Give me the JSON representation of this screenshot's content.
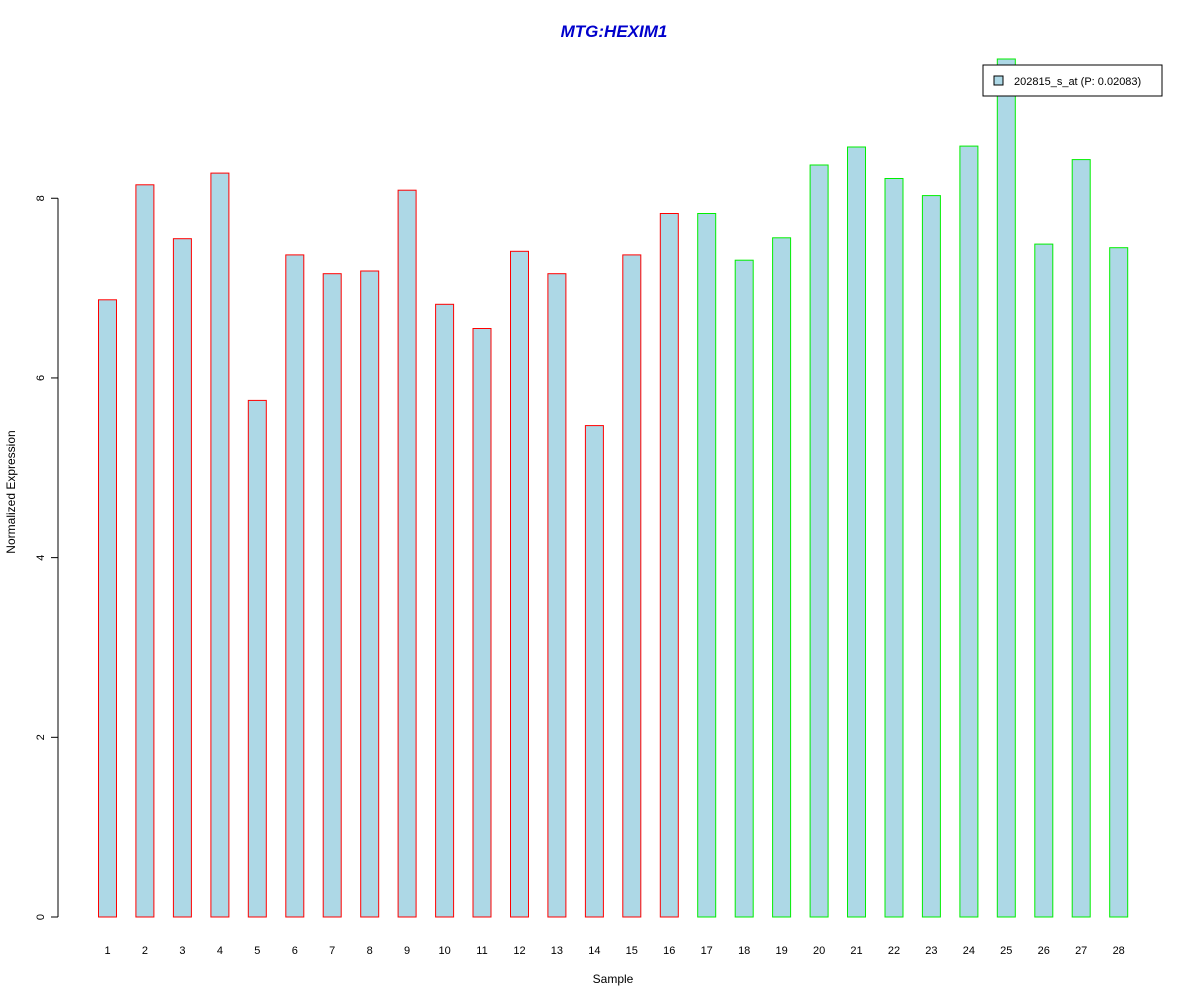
{
  "chart_data": {
    "type": "bar",
    "title": "MTG:HEXIM1",
    "xlabel": "Sample",
    "ylabel": "Normalized Expression",
    "categories": [
      "1",
      "2",
      "3",
      "4",
      "5",
      "6",
      "7",
      "8",
      "9",
      "10",
      "11",
      "12",
      "13",
      "14",
      "15",
      "16",
      "17",
      "18",
      "19",
      "20",
      "21",
      "22",
      "23",
      "24",
      "25",
      "26",
      "27",
      "28"
    ],
    "series": [
      {
        "name": "202815_s_at (P: 0.02083)",
        "values": [
          6.87,
          8.15,
          7.55,
          8.28,
          5.75,
          7.37,
          7.16,
          7.19,
          8.09,
          6.82,
          6.55,
          7.41,
          7.16,
          5.47,
          7.37,
          7.83,
          7.83,
          7.31,
          7.56,
          8.37,
          8.57,
          8.22,
          8.03,
          8.58,
          9.55,
          7.49,
          8.43,
          7.45
        ]
      }
    ],
    "groups": [
      {
        "samples": "1-16",
        "border_color": "#ff0000"
      },
      {
        "samples": "17-28",
        "border_color": "#00ee00"
      }
    ],
    "bar_fill": "#add8e6",
    "title_color": "#0000cc",
    "ylim": [
      0,
      9.55
    ],
    "yticks": [
      0,
      2,
      4,
      6,
      8
    ],
    "legend_position": "top-right",
    "grid": false
  }
}
